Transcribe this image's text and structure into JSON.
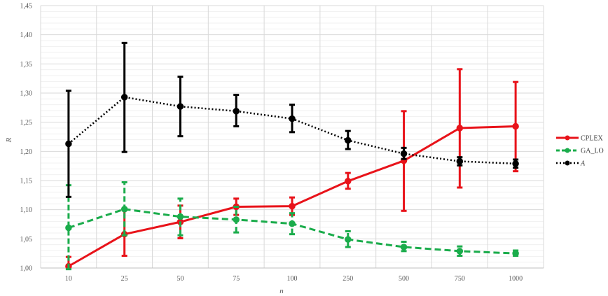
{
  "chart_data": {
    "type": "line",
    "xlabel": "n",
    "ylabel": "R",
    "categories": [
      "10",
      "25",
      "50",
      "75",
      "100",
      "250",
      "500",
      "750",
      "1000"
    ],
    "ylim": [
      1.0,
      1.45
    ],
    "yticks": [
      "1,00",
      "1,05",
      "1,10",
      "1,15",
      "1,20",
      "1,25",
      "1,30",
      "1,35",
      "1,40",
      "1,45"
    ],
    "grid": true,
    "legend_position": "right",
    "series": [
      {
        "name": "CPLEX",
        "color": "#e8131a",
        "line_style": "solid",
        "values": [
          1.003,
          1.058,
          1.079,
          1.105,
          1.106,
          1.149,
          1.184,
          1.24,
          1.243
        ],
        "err_low": [
          1.0,
          1.021,
          1.051,
          1.091,
          1.091,
          1.136,
          1.098,
          1.138,
          1.166
        ],
        "err_high": [
          1.019,
          1.099,
          1.107,
          1.119,
          1.121,
          1.163,
          1.269,
          1.341,
          1.319
        ]
      },
      {
        "name": "GA_LO",
        "color": "#1aac4b",
        "line_style": "dashed",
        "values": [
          1.069,
          1.101,
          1.088,
          1.083,
          1.076,
          1.049,
          1.036,
          1.029,
          1.025
        ],
        "err_low": [
          0.998,
          1.056,
          1.056,
          1.061,
          1.058,
          1.036,
          1.029,
          1.021,
          1.021
        ],
        "err_high": [
          1.142,
          1.147,
          1.119,
          1.105,
          1.094,
          1.063,
          1.045,
          1.037,
          1.03
        ]
      },
      {
        "name": "A",
        "color": "#000000",
        "line_style": "dotted",
        "values": [
          1.213,
          1.293,
          1.277,
          1.269,
          1.256,
          1.219,
          1.196,
          1.183,
          1.179
        ],
        "err_low": [
          1.122,
          1.199,
          1.226,
          1.243,
          1.233,
          1.204,
          1.187,
          1.176,
          1.172
        ],
        "err_high": [
          1.304,
          1.386,
          1.328,
          1.297,
          1.28,
          1.235,
          1.206,
          1.19,
          1.186
        ]
      }
    ]
  }
}
